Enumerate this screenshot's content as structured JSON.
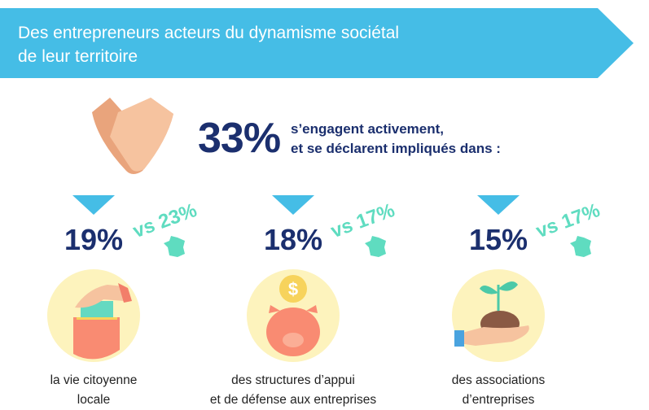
{
  "header": {
    "title_line1": "Des entrepreneurs acteurs du dynamisme sociétal",
    "title_line2": "de leur territoire"
  },
  "headline": {
    "value": "33%",
    "text_line1": "s’engagent activement,",
    "text_line2": "et se déclarent impliqués dans :"
  },
  "items": [
    {
      "value": "19%",
      "compare": "vs 23%",
      "label_line1": "la vie citoyenne",
      "label_line2": "locale",
      "icon": "ballot-box-icon"
    },
    {
      "value": "18%",
      "compare": "vs 17%",
      "label_line1": "des structures d’appui",
      "label_line2": "et de défense aux entreprises",
      "icon": "piggy-bank-icon"
    },
    {
      "value": "15%",
      "compare": "vs 17%",
      "label_line1": "des associations",
      "label_line2": "d’entreprises",
      "icon": "plant-in-hand-icon"
    }
  ],
  "colors": {
    "banner": "#45bde6",
    "navy": "#1b2f6e",
    "teal": "#5fdcc0",
    "circle": "#fdf3bd"
  }
}
